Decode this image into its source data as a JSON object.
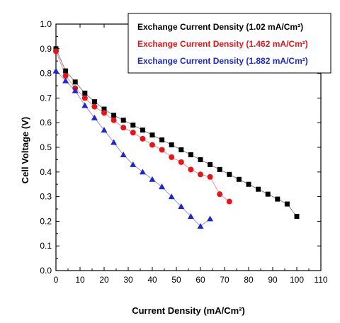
{
  "chart_data": {
    "type": "scatter",
    "xlabel": "Current Density (mA/Cm²)",
    "ylabel": "Cell Voltage (V)",
    "xlim": [
      0,
      110
    ],
    "ylim": [
      0.0,
      1.0
    ],
    "xticks": [
      0,
      10,
      20,
      30,
      40,
      50,
      60,
      70,
      80,
      90,
      100,
      110
    ],
    "yticks": [
      0.0,
      0.1,
      0.2,
      0.3,
      0.4,
      0.5,
      0.6,
      0.7,
      0.8,
      0.9,
      1.0
    ],
    "xtick_labels": [
      "0",
      "10",
      "20",
      "30",
      "40",
      "50",
      "60",
      "70",
      "80",
      "90",
      "100",
      "110"
    ],
    "ytick_labels": [
      "0.0",
      "0.1",
      "0.2",
      "0.3",
      "0.4",
      "0.5",
      "0.6",
      "0.7",
      "0.8",
      "0.9",
      "1.0"
    ],
    "grid": false,
    "legend_position": "top-right",
    "series": [
      {
        "name": "Exchange Current Density (1.02 mA/Cm²)",
        "color": "#000000",
        "marker": "square",
        "x": [
          0,
          4,
          8,
          12,
          16,
          20,
          24,
          28,
          32,
          36,
          40,
          44,
          48,
          52,
          56,
          60,
          64,
          68,
          72,
          76,
          80,
          84,
          88,
          92,
          96,
          100
        ],
        "y": [
          0.9,
          0.81,
          0.765,
          0.72,
          0.685,
          0.655,
          0.63,
          0.61,
          0.59,
          0.57,
          0.55,
          0.53,
          0.51,
          0.49,
          0.47,
          0.45,
          0.43,
          0.41,
          0.39,
          0.37,
          0.35,
          0.33,
          0.31,
          0.29,
          0.27,
          0.22
        ]
      },
      {
        "name": "Exchange Current Density (1.462 mA/Cm²)",
        "color": "#e8141a",
        "marker": "circle",
        "x": [
          0,
          4,
          8,
          12,
          16,
          20,
          24,
          28,
          32,
          36,
          40,
          44,
          48,
          52,
          56,
          60,
          64,
          68,
          72
        ],
        "y": [
          0.89,
          0.79,
          0.74,
          0.7,
          0.665,
          0.64,
          0.61,
          0.58,
          0.56,
          0.535,
          0.51,
          0.49,
          0.46,
          0.44,
          0.41,
          0.39,
          0.38,
          0.31,
          0.28
        ]
      },
      {
        "name": "Exchange Current Density (1.882 mA/Cm²)",
        "color": "#1e28c8",
        "marker": "triangle",
        "x": [
          0,
          4,
          8,
          12,
          16,
          20,
          24,
          28,
          32,
          36,
          40,
          44,
          48,
          52,
          56,
          60,
          64
        ],
        "y": [
          0.81,
          0.77,
          0.73,
          0.67,
          0.62,
          0.57,
          0.52,
          0.47,
          0.43,
          0.4,
          0.37,
          0.34,
          0.3,
          0.26,
          0.22,
          0.18,
          0.21
        ]
      }
    ]
  }
}
